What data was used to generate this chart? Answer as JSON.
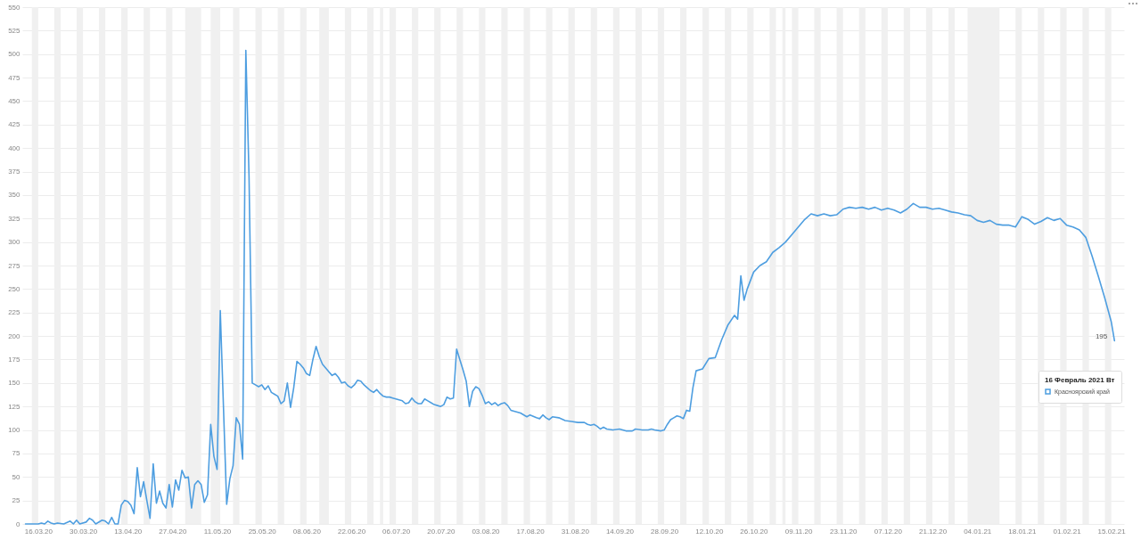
{
  "chart_data": {
    "type": "line",
    "legend_title": "16 Февраль 2021 Вт",
    "legend": "right",
    "grid": "y",
    "line_style": "solid",
    "xlim": [
      "2020-03-11",
      "2021-02-19"
    ],
    "xticks": [
      {
        "value": "2020-03-16",
        "label": "16.03.20"
      },
      {
        "value": "2020-03-30",
        "label": "30.03.20"
      },
      {
        "value": "2020-04-13",
        "label": "13.04.20"
      },
      {
        "value": "2020-04-27",
        "label": "27.04.20"
      },
      {
        "value": "2020-05-11",
        "label": "11.05.20"
      },
      {
        "value": "2020-05-25",
        "label": "25.05.20"
      },
      {
        "value": "2020-06-08",
        "label": "08.06.20"
      },
      {
        "value": "2020-06-22",
        "label": "22.06.20"
      },
      {
        "value": "2020-07-06",
        "label": "06.07.20"
      },
      {
        "value": "2020-07-20",
        "label": "20.07.20"
      },
      {
        "value": "2020-08-03",
        "label": "03.08.20"
      },
      {
        "value": "2020-08-17",
        "label": "17.08.20"
      },
      {
        "value": "2020-08-31",
        "label": "31.08.20"
      },
      {
        "value": "2020-09-14",
        "label": "14.09.20"
      },
      {
        "value": "2020-09-28",
        "label": "28.09.20"
      },
      {
        "value": "2020-10-12",
        "label": "12.10.20"
      },
      {
        "value": "2020-10-26",
        "label": "26.10.20"
      },
      {
        "value": "2020-11-09",
        "label": "09.11.20"
      },
      {
        "value": "2020-11-23",
        "label": "23.11.20"
      },
      {
        "value": "2020-12-07",
        "label": "07.12.20"
      },
      {
        "value": "2020-12-21",
        "label": "21.12.20"
      },
      {
        "value": "2021-01-04",
        "label": "04.01.21"
      },
      {
        "value": "2021-01-18",
        "label": "18.01.21"
      },
      {
        "value": "2021-02-01",
        "label": "01.02.21"
      },
      {
        "value": "2021-02-15",
        "label": "15.02.21"
      }
    ],
    "ylim": [
      0,
      550
    ],
    "yticks": [
      0,
      25,
      50,
      75,
      100,
      125,
      150,
      175,
      200,
      225,
      250,
      275,
      300,
      325,
      350,
      375,
      400,
      425,
      450,
      475,
      500,
      525,
      550
    ],
    "series": [
      {
        "name": "Красноярский край",
        "color": "#4e9ee0",
        "x": [
          "2020-03-12",
          "2020-03-14",
          "2020-03-16",
          "2020-03-17",
          "2020-03-18",
          "2020-03-19",
          "2020-03-20",
          "2020-03-21",
          "2020-03-22",
          "2020-03-24",
          "2020-03-26",
          "2020-03-27",
          "2020-03-28",
          "2020-03-29",
          "2020-03-31",
          "2020-04-01",
          "2020-04-02",
          "2020-04-03",
          "2020-04-05",
          "2020-04-06",
          "2020-04-07",
          "2020-04-08",
          "2020-04-09",
          "2020-04-10",
          "2020-04-11",
          "2020-04-12",
          "2020-04-13",
          "2020-04-14",
          "2020-04-15",
          "2020-04-16",
          "2020-04-17",
          "2020-04-18",
          "2020-04-19",
          "2020-04-20",
          "2020-04-21",
          "2020-04-22",
          "2020-04-23",
          "2020-04-24",
          "2020-04-25",
          "2020-04-26",
          "2020-04-27",
          "2020-04-28",
          "2020-04-29",
          "2020-04-30",
          "2020-05-01",
          "2020-05-02",
          "2020-05-03",
          "2020-05-04",
          "2020-05-05",
          "2020-05-06",
          "2020-05-07",
          "2020-05-08",
          "2020-05-09",
          "2020-05-10",
          "2020-05-11",
          "2020-05-12",
          "2020-05-13",
          "2020-05-14",
          "2020-05-15",
          "2020-05-16",
          "2020-05-17",
          "2020-05-18",
          "2020-05-19",
          "2020-05-20",
          "2020-05-21",
          "2020-05-22",
          "2020-05-23",
          "2020-05-24",
          "2020-05-25",
          "2020-05-26",
          "2020-05-27",
          "2020-05-28",
          "2020-05-29",
          "2020-05-30",
          "2020-05-31",
          "2020-06-01",
          "2020-06-02",
          "2020-06-03",
          "2020-06-04",
          "2020-06-05",
          "2020-06-06",
          "2020-06-07",
          "2020-06-08",
          "2020-06-09",
          "2020-06-10",
          "2020-06-11",
          "2020-06-12",
          "2020-06-13",
          "2020-06-14",
          "2020-06-15",
          "2020-06-16",
          "2020-06-17",
          "2020-06-18",
          "2020-06-19",
          "2020-06-20",
          "2020-06-21",
          "2020-06-22",
          "2020-06-23",
          "2020-06-24",
          "2020-06-25",
          "2020-06-26",
          "2020-06-27",
          "2020-06-28",
          "2020-06-29",
          "2020-06-30",
          "2020-07-01",
          "2020-07-02",
          "2020-07-03",
          "2020-07-04",
          "2020-07-05",
          "2020-07-06",
          "2020-07-07",
          "2020-07-08",
          "2020-07-09",
          "2020-07-10",
          "2020-07-11",
          "2020-07-12",
          "2020-07-13",
          "2020-07-14",
          "2020-07-15",
          "2020-07-16",
          "2020-07-17",
          "2020-07-18",
          "2020-07-19",
          "2020-07-20",
          "2020-07-21",
          "2020-07-22",
          "2020-07-23",
          "2020-07-24",
          "2020-07-25",
          "2020-07-26",
          "2020-07-27",
          "2020-07-28",
          "2020-07-29",
          "2020-07-30",
          "2020-07-31",
          "2020-08-01",
          "2020-08-02",
          "2020-08-03",
          "2020-08-04",
          "2020-08-05",
          "2020-08-06",
          "2020-08-07",
          "2020-08-08",
          "2020-08-09",
          "2020-08-10",
          "2020-08-11",
          "2020-08-13",
          "2020-08-14",
          "2020-08-16",
          "2020-08-17",
          "2020-08-19",
          "2020-08-20",
          "2020-08-21",
          "2020-08-22",
          "2020-08-23",
          "2020-08-24",
          "2020-08-26",
          "2020-08-28",
          "2020-08-30",
          "2020-09-01",
          "2020-09-03",
          "2020-09-04",
          "2020-09-05",
          "2020-09-06",
          "2020-09-07",
          "2020-09-08",
          "2020-09-09",
          "2020-09-10",
          "2020-09-12",
          "2020-09-14",
          "2020-09-16",
          "2020-09-18",
          "2020-09-19",
          "2020-09-21",
          "2020-09-23",
          "2020-09-24",
          "2020-09-25",
          "2020-09-27",
          "2020-09-28",
          "2020-09-29",
          "2020-09-30",
          "2020-10-01",
          "2020-10-02",
          "2020-10-03",
          "2020-10-04",
          "2020-10-05",
          "2020-10-06",
          "2020-10-07",
          "2020-10-08",
          "2020-10-10",
          "2020-10-12",
          "2020-10-14",
          "2020-10-16",
          "2020-10-18",
          "2020-10-20",
          "2020-10-21",
          "2020-10-22",
          "2020-10-23",
          "2020-10-24",
          "2020-10-26",
          "2020-10-28",
          "2020-10-30",
          "2020-11-01",
          "2020-11-03",
          "2020-11-05",
          "2020-11-07",
          "2020-11-09",
          "2020-11-11",
          "2020-11-13",
          "2020-11-15",
          "2020-11-17",
          "2020-11-19",
          "2020-11-21",
          "2020-11-23",
          "2020-11-25",
          "2020-11-27",
          "2020-11-29",
          "2020-12-01",
          "2020-12-03",
          "2020-12-05",
          "2020-12-07",
          "2020-12-09",
          "2020-12-11",
          "2020-12-13",
          "2020-12-15",
          "2020-12-17",
          "2020-12-19",
          "2020-12-21",
          "2020-12-23",
          "2020-12-25",
          "2020-12-27",
          "2020-12-29",
          "2020-12-31",
          "2021-01-02",
          "2021-01-04",
          "2021-01-06",
          "2021-01-08",
          "2021-01-10",
          "2021-01-12",
          "2021-01-14",
          "2021-01-16",
          "2021-01-18",
          "2021-01-20",
          "2021-01-22",
          "2021-01-24",
          "2021-01-26",
          "2021-01-28",
          "2021-01-30",
          "2021-02-01",
          "2021-02-03",
          "2021-02-05",
          "2021-02-07",
          "2021-02-09",
          "2021-02-11",
          "2021-02-13",
          "2021-02-15",
          "2021-02-16"
        ],
        "values": [
          0,
          0,
          0,
          1,
          0,
          3,
          1,
          0,
          1,
          0,
          3,
          0,
          4,
          0,
          2,
          6,
          4,
          0,
          4,
          3,
          0,
          7,
          0,
          0,
          20,
          25,
          24,
          20,
          11,
          60,
          29,
          45,
          25,
          6,
          64,
          22,
          35,
          22,
          17,
          42,
          18,
          47,
          36,
          57,
          49,
          50,
          17,
          42,
          46,
          42,
          23,
          31,
          106,
          72,
          58,
          227,
          124,
          21,
          48,
          62,
          113,
          106,
          69,
          504,
          370,
          150,
          148,
          146,
          148,
          143,
          147,
          140,
          138,
          136,
          128,
          131,
          150,
          124,
          145,
          173,
          170,
          166,
          160,
          158,
          175,
          189,
          178,
          170,
          166,
          162,
          158,
          160,
          156,
          150,
          151,
          147,
          145,
          148,
          153,
          152,
          148,
          145,
          142,
          140,
          143,
          139,
          136,
          135,
          135,
          134,
          133,
          132,
          131,
          128,
          129,
          134,
          130,
          128,
          128,
          133,
          131,
          129,
          127,
          126,
          125,
          127,
          135,
          133,
          134,
          186,
          175,
          164,
          152,
          125,
          141,
          146,
          144,
          137,
          128,
          130,
          127,
          129,
          126,
          128,
          129,
          126,
          121,
          119,
          118,
          114,
          116,
          113,
          112,
          116,
          113,
          111,
          114,
          113,
          110,
          109,
          108,
          108,
          106,
          105,
          106,
          104,
          101,
          103,
          101,
          100,
          101,
          99,
          99,
          101,
          100,
          100,
          101,
          100,
          99,
          100,
          106,
          111,
          113,
          115,
          114,
          112,
          121,
          120,
          145,
          163,
          165,
          176,
          177,
          196,
          212,
          222,
          218,
          264,
          238,
          250,
          268,
          275,
          279,
          289,
          294,
          300,
          308,
          316,
          324,
          330,
          328,
          330,
          328,
          329,
          335,
          337,
          336,
          337,
          335,
          337,
          334,
          336,
          334,
          331,
          335,
          341,
          337,
          337,
          335,
          336,
          334,
          332,
          331,
          329,
          328,
          323,
          321,
          323,
          319,
          318,
          318,
          316,
          327,
          324,
          319,
          322,
          326,
          323,
          325,
          318,
          316,
          313,
          305,
          285,
          263,
          240,
          215,
          195
        ]
      }
    ],
    "annotations": [
      {
        "text": "195",
        "x": "2021-02-16",
        "y": 195
      }
    ],
    "bands": [
      {
        "axis": "x",
        "from": "2020-03-14",
        "to": "2020-03-16",
        "color": "#f0f0f0"
      },
      {
        "axis": "x",
        "from": "2020-03-21",
        "to": "2020-03-23",
        "color": "#f0f0f0"
      },
      {
        "axis": "x",
        "from": "2020-03-28",
        "to": "2020-03-30",
        "color": "#f0f0f0"
      },
      {
        "axis": "x",
        "from": "2020-04-04",
        "to": "2020-04-06",
        "color": "#f0f0f0"
      },
      {
        "axis": "x",
        "from": "2020-04-11",
        "to": "2020-04-13",
        "color": "#f0f0f0"
      },
      {
        "axis": "x",
        "from": "2020-04-18",
        "to": "2020-04-20",
        "color": "#f0f0f0"
      },
      {
        "axis": "x",
        "from": "2020-04-25",
        "to": "2020-04-27",
        "color": "#f0f0f0"
      },
      {
        "axis": "x",
        "from": "2020-05-01",
        "to": "2020-05-06",
        "color": "#f0f0f0"
      },
      {
        "axis": "x",
        "from": "2020-05-09",
        "to": "2020-05-12",
        "color": "#f0f0f0"
      },
      {
        "axis": "x",
        "from": "2020-05-16",
        "to": "2020-05-18",
        "color": "#f0f0f0"
      },
      {
        "axis": "x",
        "from": "2020-05-23",
        "to": "2020-05-25",
        "color": "#f0f0f0"
      },
      {
        "axis": "x",
        "from": "2020-05-30",
        "to": "2020-06-01",
        "color": "#f0f0f0"
      },
      {
        "axis": "x",
        "from": "2020-06-06",
        "to": "2020-06-08",
        "color": "#f0f0f0"
      },
      {
        "axis": "x",
        "from": "2020-06-12",
        "to": "2020-06-15",
        "color": "#f0f0f0"
      },
      {
        "axis": "x",
        "from": "2020-06-20",
        "to": "2020-06-22",
        "color": "#f0f0f0"
      },
      {
        "axis": "x",
        "from": "2020-06-27",
        "to": "2020-06-29",
        "color": "#f0f0f0"
      },
      {
        "axis": "x",
        "from": "2020-07-01",
        "to": "2020-07-02",
        "color": "#f0f0f0"
      },
      {
        "axis": "x",
        "from": "2020-07-04",
        "to": "2020-07-06",
        "color": "#f0f0f0"
      },
      {
        "axis": "x",
        "from": "2020-07-11",
        "to": "2020-07-13",
        "color": "#f0f0f0"
      },
      {
        "axis": "x",
        "from": "2020-07-18",
        "to": "2020-07-20",
        "color": "#f0f0f0"
      },
      {
        "axis": "x",
        "from": "2020-07-25",
        "to": "2020-07-27",
        "color": "#f0f0f0"
      },
      {
        "axis": "x",
        "from": "2020-08-01",
        "to": "2020-08-03",
        "color": "#f0f0f0"
      },
      {
        "axis": "x",
        "from": "2020-08-08",
        "to": "2020-08-10",
        "color": "#f0f0f0"
      },
      {
        "axis": "x",
        "from": "2020-08-15",
        "to": "2020-08-17",
        "color": "#f0f0f0"
      },
      {
        "axis": "x",
        "from": "2020-08-22",
        "to": "2020-08-24",
        "color": "#f0f0f0"
      },
      {
        "axis": "x",
        "from": "2020-08-29",
        "to": "2020-08-31",
        "color": "#f0f0f0"
      },
      {
        "axis": "x",
        "from": "2020-09-05",
        "to": "2020-09-07",
        "color": "#f0f0f0"
      },
      {
        "axis": "x",
        "from": "2020-09-12",
        "to": "2020-09-14",
        "color": "#f0f0f0"
      },
      {
        "axis": "x",
        "from": "2020-09-19",
        "to": "2020-09-21",
        "color": "#f0f0f0"
      },
      {
        "axis": "x",
        "from": "2020-09-26",
        "to": "2020-09-28",
        "color": "#f0f0f0"
      },
      {
        "axis": "x",
        "from": "2020-10-03",
        "to": "2020-10-05",
        "color": "#f0f0f0"
      },
      {
        "axis": "x",
        "from": "2020-10-10",
        "to": "2020-10-12",
        "color": "#f0f0f0"
      },
      {
        "axis": "x",
        "from": "2020-10-17",
        "to": "2020-10-19",
        "color": "#f0f0f0"
      },
      {
        "axis": "x",
        "from": "2020-10-24",
        "to": "2020-10-26",
        "color": "#f0f0f0"
      },
      {
        "axis": "x",
        "from": "2020-10-31",
        "to": "2020-11-02",
        "color": "#f0f0f0"
      },
      {
        "axis": "x",
        "from": "2020-11-04",
        "to": "2020-11-05",
        "color": "#f0f0f0"
      },
      {
        "axis": "x",
        "from": "2020-11-07",
        "to": "2020-11-09",
        "color": "#f0f0f0"
      },
      {
        "axis": "x",
        "from": "2020-11-14",
        "to": "2020-11-16",
        "color": "#f0f0f0"
      },
      {
        "axis": "x",
        "from": "2020-11-21",
        "to": "2020-11-23",
        "color": "#f0f0f0"
      },
      {
        "axis": "x",
        "from": "2020-11-28",
        "to": "2020-11-30",
        "color": "#f0f0f0"
      },
      {
        "axis": "x",
        "from": "2020-12-05",
        "to": "2020-12-07",
        "color": "#f0f0f0"
      },
      {
        "axis": "x",
        "from": "2020-12-12",
        "to": "2020-12-14",
        "color": "#f0f0f0"
      },
      {
        "axis": "x",
        "from": "2020-12-19",
        "to": "2020-12-21",
        "color": "#f0f0f0"
      },
      {
        "axis": "x",
        "from": "2020-12-26",
        "to": "2020-12-28",
        "color": "#f0f0f0"
      },
      {
        "axis": "x",
        "from": "2021-01-01",
        "to": "2021-01-11",
        "color": "#f0f0f0"
      },
      {
        "axis": "x",
        "from": "2021-01-16",
        "to": "2021-01-18",
        "color": "#f0f0f0"
      },
      {
        "axis": "x",
        "from": "2021-01-23",
        "to": "2021-01-25",
        "color": "#f0f0f0"
      },
      {
        "axis": "x",
        "from": "2021-01-30",
        "to": "2021-02-01",
        "color": "#f0f0f0"
      },
      {
        "axis": "x",
        "from": "2021-02-06",
        "to": "2021-02-08",
        "color": "#f0f0f0"
      },
      {
        "axis": "x",
        "from": "2021-02-13",
        "to": "2021-02-15",
        "color": "#f0f0f0"
      }
    ]
  }
}
